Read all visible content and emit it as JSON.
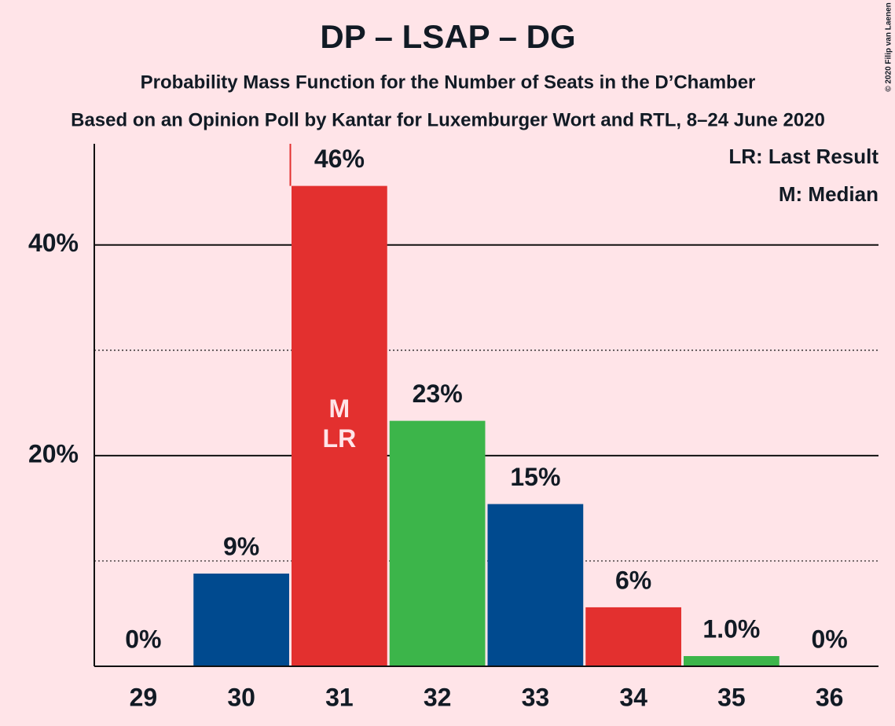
{
  "chart_data": {
    "type": "bar",
    "title": "DP – LSAP – DG",
    "subtitle": "Probability Mass Function for the Number of Seats in the D’Chamber",
    "subtitle2": "Based on an Opinion Poll by Kantar for Luxemburger Wort and RTL, 8–24 June 2020",
    "copyright": "© 2020 Filip van Laenen",
    "categories": [
      "29",
      "30",
      "31",
      "32",
      "33",
      "34",
      "35",
      "36"
    ],
    "values": [
      0,
      8.8,
      45.6,
      23.3,
      15.4,
      5.6,
      0.97,
      0
    ],
    "value_labels": [
      "0%",
      "9%",
      "46%",
      "23%",
      "15%",
      "6%",
      "1.0%",
      "0%"
    ],
    "colors": [
      "#004a8f",
      "#004a8f",
      "#e3302f",
      "#3cb54a",
      "#004a8f",
      "#e3302f",
      "#3cb54a",
      "#004a8f"
    ],
    "ylim": [
      0,
      49.6
    ],
    "yticks": [
      {
        "value": 20,
        "label": "20%"
      },
      {
        "value": 40,
        "label": "40%"
      }
    ],
    "minor_yticks": [
      10,
      30
    ],
    "grid": true,
    "median": "31",
    "median_label": "M",
    "last_result": "31",
    "last_result_label": "LR",
    "last_result_color": "#e3302f",
    "legend": [
      "LR: Last Result",
      "M: Median"
    ],
    "legend_position": "upper right"
  }
}
